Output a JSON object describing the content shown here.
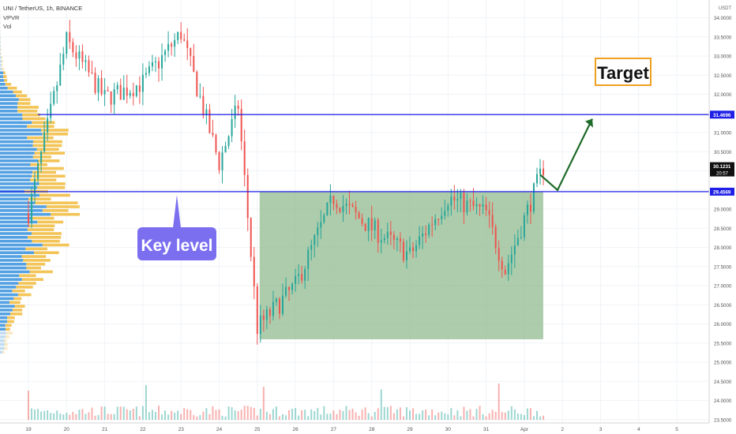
{
  "header": {
    "symbol_line": "UNI / TetherUS, 1h, BINANCE",
    "indicators": [
      "VPVR",
      "Vol"
    ]
  },
  "price_axis": {
    "currency": "USDT",
    "ticks": [
      "34.0000",
      "33.5000",
      "33.0000",
      "32.5000",
      "32.0000",
      "31.5000",
      "31.0000",
      "30.5000",
      "30.0000",
      "29.5000",
      "29.0000",
      "28.5000",
      "28.0000",
      "27.5000",
      "27.0000",
      "26.5000",
      "26.0000",
      "25.5000",
      "25.0000",
      "24.5000",
      "24.0000",
      "23.5000"
    ],
    "labels": [
      {
        "text": "31.4696",
        "price": 31.4696,
        "color": "#1f1fe6"
      },
      {
        "text": "29.4569",
        "price": 29.4569,
        "color": "#1f1fe6"
      },
      {
        "text": "30.1231",
        "price": 30.1231,
        "color": "#111111",
        "sub": "20:57"
      }
    ]
  },
  "time_axis": {
    "ticks": [
      "19",
      "20",
      "21",
      "22",
      "23",
      "24",
      "25",
      "26",
      "27",
      "28",
      "29",
      "30",
      "31",
      "Apr",
      "2",
      "3",
      "4",
      "5"
    ]
  },
  "annotations": {
    "key_level": "Key level",
    "target": "Target"
  },
  "colors": {
    "up": "#26a69a",
    "down": "#ef5350",
    "level_line": "#1f1fe6",
    "range_box": "#8db88a",
    "key_level_bg": "#7b6ff0",
    "target_border": "#f0a020",
    "arrow": "#1e6b2a",
    "vpvr_blue": "#4a9be0",
    "vpvr_yellow": "#f2c14e"
  },
  "chart_data": {
    "type": "candlestick",
    "title": "UNI / TetherUS, 1h, BINANCE",
    "x_range": [
      "Mar 19",
      "Apr 5"
    ],
    "y_range": [
      23.3,
      34.3
    ],
    "horizontal_levels": [
      31.4696,
      29.4569
    ],
    "range_box": {
      "from": "Mar 25",
      "to": "Apr 1",
      "low": 25.6,
      "high": 29.45
    },
    "last_price": 30.1231,
    "key_points": [
      {
        "date": "Mar 19",
        "price": 28.9
      },
      {
        "date": "Mar 20",
        "price": 33.4
      },
      {
        "date": "Mar 21",
        "price": 31.9
      },
      {
        "date": "Mar 22",
        "price": 32.3
      },
      {
        "date": "Mar 23",
        "price": 33.6
      },
      {
        "date": "Mar 24",
        "price": 30.2
      },
      {
        "date": "Mar 24",
        "price": 31.7
      },
      {
        "date": "Mar 25",
        "price": 25.9
      },
      {
        "date": "Mar 26",
        "price": 27.0
      },
      {
        "date": "Mar 27",
        "price": 29.3
      },
      {
        "date": "Mar 28",
        "price": 28.5
      },
      {
        "date": "Mar 29",
        "price": 27.8
      },
      {
        "date": "Mar 30",
        "price": 29.3
      },
      {
        "date": "Mar 31",
        "price": 28.9
      },
      {
        "date": "Mar 31",
        "price": 27.4
      },
      {
        "date": "Apr 1",
        "price": 30.1
      }
    ],
    "projection": [
      {
        "date": "Apr 1",
        "price": 29.9
      },
      {
        "date": "Apr 2",
        "price": 29.5
      },
      {
        "date": "Apr 3",
        "price": 31.4
      }
    ]
  }
}
